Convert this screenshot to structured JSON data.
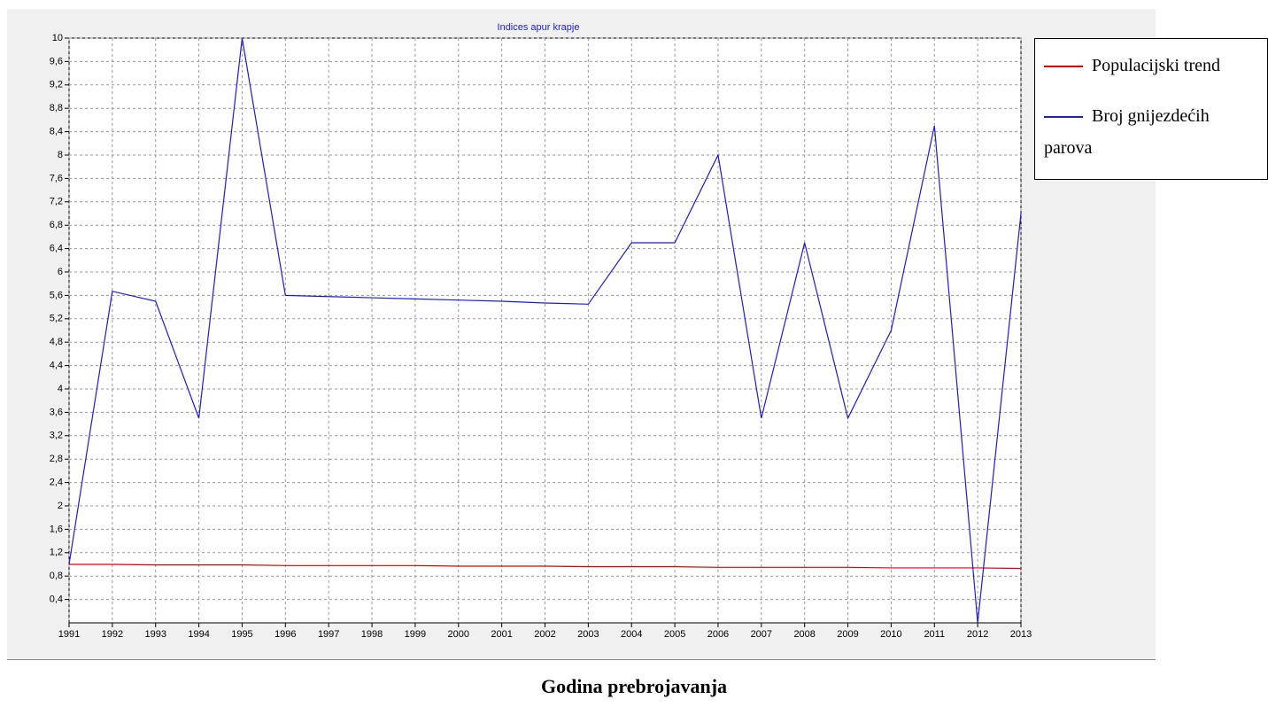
{
  "chart_data": {
    "type": "line",
    "title": "Indices apur krapje",
    "x_label": "Godina prebrojavanja",
    "x": [
      1991,
      1992,
      1993,
      1994,
      1995,
      1996,
      1997,
      1998,
      1999,
      2000,
      2001,
      2002,
      2003,
      2004,
      2005,
      2006,
      2007,
      2008,
      2009,
      2010,
      2011,
      2012,
      2013
    ],
    "xlim": [
      1991,
      2013
    ],
    "xticks": [
      1991,
      1992,
      1993,
      1994,
      1995,
      1996,
      1997,
      1998,
      1999,
      2000,
      2001,
      2002,
      2003,
      2004,
      2005,
      2006,
      2007,
      2008,
      2009,
      2010,
      2011,
      2012,
      2013
    ],
    "ylim": [
      0,
      10
    ],
    "yticks": [
      {
        "value": 0.4,
        "label": "0,4"
      },
      {
        "value": 0.8,
        "label": "0,8"
      },
      {
        "value": 1.2,
        "label": "1,2"
      },
      {
        "value": 1.6,
        "label": "1,6"
      },
      2,
      {
        "value": 2.4,
        "label": "2,4"
      },
      {
        "value": 2.8,
        "label": "2,8"
      },
      {
        "value": 3.2,
        "label": "3,2"
      },
      {
        "value": 3.6,
        "label": "3,6"
      },
      4,
      {
        "value": 4.4,
        "label": "4,4"
      },
      {
        "value": 4.8,
        "label": "4,8"
      },
      {
        "value": 5.2,
        "label": "5,2"
      },
      {
        "value": 5.6,
        "label": "5,6"
      },
      6,
      {
        "value": 6.4,
        "label": "6,4"
      },
      {
        "value": 6.8,
        "label": "6,8"
      },
      {
        "value": 7.2,
        "label": "7,2"
      },
      {
        "value": 7.6,
        "label": "7,6"
      },
      8,
      {
        "value": 8.4,
        "label": "8,4"
      },
      {
        "value": 8.8,
        "label": "8,8"
      },
      {
        "value": 9.2,
        "label": "9,2"
      },
      {
        "value": 9.6,
        "label": "9,6"
      },
      10
    ],
    "grid": true,
    "legend": "right",
    "series": [
      {
        "name": "Populacijski trend",
        "color": "#e00000",
        "values": [
          1.0,
          1.0,
          0.99,
          0.99,
          0.99,
          0.98,
          0.98,
          0.98,
          0.98,
          0.97,
          0.97,
          0.97,
          0.96,
          0.96,
          0.96,
          0.95,
          0.95,
          0.95,
          0.95,
          0.94,
          0.94,
          0.94,
          0.93
        ]
      },
      {
        "name": "Broj gnijezdećih parova",
        "color": "#1a1ae0",
        "values": [
          1,
          5.67,
          5.5,
          3.5,
          10,
          5.6,
          5.58,
          5.56,
          5.54,
          5.52,
          5.5,
          5.47,
          5.45,
          6.5,
          6.5,
          8,
          3.5,
          6.5,
          3.5,
          5,
          8.5,
          0,
          7
        ]
      }
    ]
  }
}
